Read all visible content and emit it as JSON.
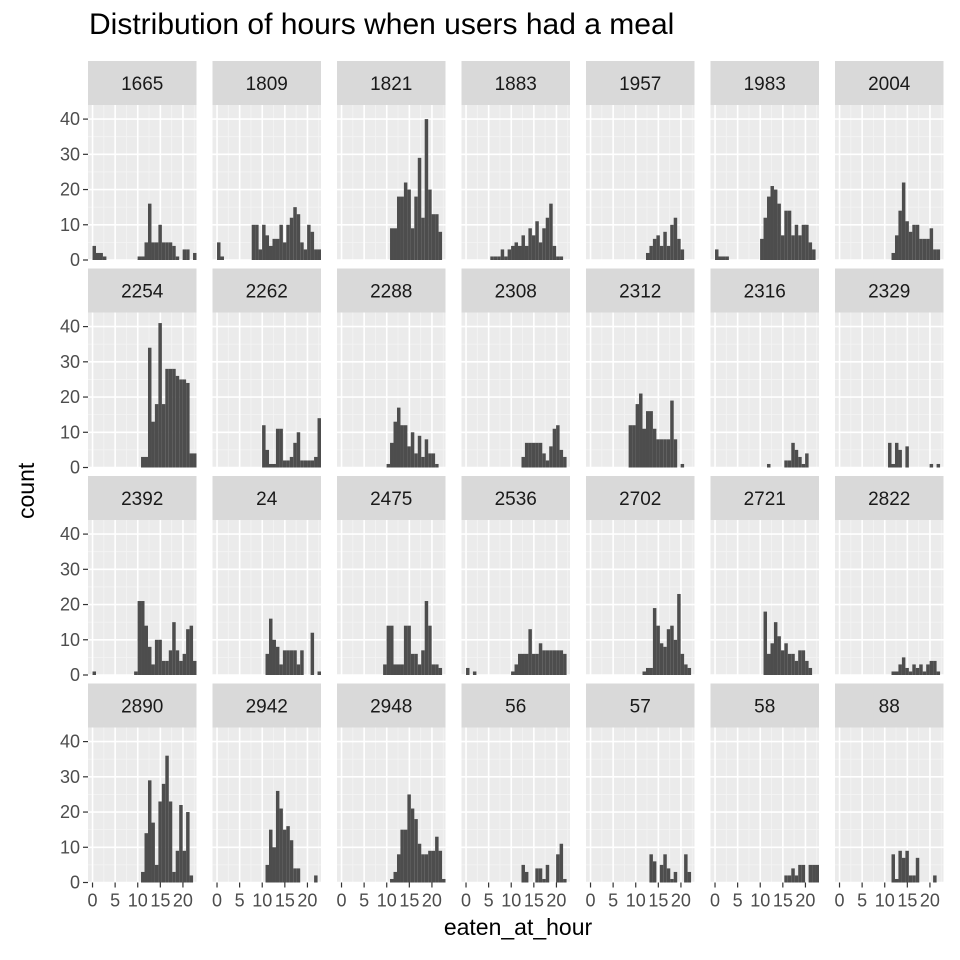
{
  "chart_data": {
    "type": "bar",
    "title": "Distribution of hours when users had a meal",
    "xlabel": "eaten_at_hour",
    "ylabel": "count",
    "xlim": [
      -1,
      23
    ],
    "ylim": [
      0,
      44
    ],
    "x_ticks": [
      0,
      5,
      10,
      15,
      20
    ],
    "x_tick_labels": [
      "0",
      "5",
      "10",
      "15",
      "20"
    ],
    "y_ticks": [
      0,
      10,
      20,
      30,
      40
    ],
    "y_tick_labels": [
      "0",
      "10",
      "20",
      "30",
      "40"
    ],
    "bar_color": "#4d4d4d",
    "strip_color": "#d9d9d9",
    "panel_color": "#ebebeb",
    "grid": true,
    "bins_x": [
      0,
      0.77,
      1.53,
      2.3,
      3.07,
      3.83,
      4.6,
      5.37,
      6.13,
      6.9,
      7.67,
      8.43,
      9.2,
      9.97,
      10.73,
      11.5,
      12.27,
      13.03,
      13.8,
      14.57,
      15.33,
      16.1,
      16.87,
      17.63,
      18.4,
      19.17,
      19.93,
      20.7,
      21.47,
      22.23
    ],
    "panels": [
      {
        "label": "1665",
        "counts": [
          4,
          2,
          2,
          1,
          0,
          0,
          0,
          0,
          0,
          0,
          0,
          0,
          0,
          1,
          1,
          5,
          16,
          5,
          5,
          10,
          5,
          5,
          5,
          4,
          1,
          0,
          3,
          3,
          0,
          2
        ]
      },
      {
        "label": "1809",
        "counts": [
          5,
          1,
          0,
          0,
          0,
          0,
          0,
          0,
          0,
          0,
          10,
          10,
          3,
          10,
          7,
          4,
          6,
          6,
          10,
          5,
          10,
          12,
          15,
          13,
          5,
          3,
          10,
          8,
          3,
          3
        ]
      },
      {
        "label": "1821",
        "counts": [
          0,
          0,
          0,
          0,
          0,
          0,
          0,
          0,
          0,
          0,
          0,
          0,
          0,
          0,
          9,
          9,
          18,
          18,
          22,
          20,
          9,
          18,
          29,
          12,
          40,
          20,
          13,
          13,
          8,
          0
        ]
      },
      {
        "label": "1883",
        "counts": [
          0,
          0,
          0,
          0,
          0,
          0,
          0,
          1,
          1,
          1,
          3,
          1,
          3,
          4,
          5,
          4,
          7,
          4,
          9,
          7,
          11,
          5,
          9,
          12,
          16,
          4,
          1,
          1,
          0,
          0
        ]
      },
      {
        "label": "1957",
        "counts": [
          0,
          0,
          0,
          0,
          0,
          0,
          0,
          0,
          0,
          0,
          0,
          0,
          0,
          0,
          0,
          0,
          2,
          4,
          6,
          7,
          4,
          8,
          4,
          10,
          12,
          6,
          3,
          0,
          0,
          0
        ]
      },
      {
        "label": "1983",
        "counts": [
          3,
          1,
          1,
          1,
          0,
          0,
          0,
          0,
          0,
          0,
          0,
          0,
          0,
          6,
          12,
          18,
          21,
          20,
          16,
          7,
          14,
          14,
          7,
          10,
          7,
          10,
          10,
          5,
          3,
          0
        ]
      },
      {
        "label": "2004",
        "counts": [
          0,
          0,
          0,
          0,
          0,
          0,
          0,
          0,
          0,
          0,
          0,
          0,
          0,
          0,
          0,
          2,
          7,
          14,
          22,
          11,
          8,
          10,
          10,
          6,
          6,
          6,
          9,
          3,
          3,
          0
        ]
      },
      {
        "label": "2254",
        "counts": [
          0,
          0,
          0,
          0,
          0,
          0,
          0,
          0,
          0,
          0,
          0,
          0,
          0,
          0,
          3,
          3,
          34,
          13,
          18,
          41,
          18,
          28,
          28,
          28,
          26,
          25,
          25,
          24,
          4,
          4
        ]
      },
      {
        "label": "2262",
        "counts": [
          0,
          0,
          0,
          0,
          0,
          0,
          0,
          0,
          0,
          0,
          0,
          0,
          0,
          12,
          5,
          1,
          1,
          11,
          11,
          2,
          2,
          3,
          7,
          10,
          2,
          2,
          2,
          2,
          3,
          14
        ]
      },
      {
        "label": "2288",
        "counts": [
          0,
          0,
          0,
          0,
          0,
          0,
          0,
          0,
          0,
          0,
          0,
          0,
          0,
          1,
          7,
          13,
          17,
          12,
          12,
          6,
          10,
          4,
          9,
          3,
          8,
          4,
          4,
          1,
          0,
          0
        ]
      },
      {
        "label": "2308",
        "counts": [
          0,
          0,
          0,
          0,
          0,
          0,
          0,
          0,
          0,
          0,
          0,
          0,
          0,
          0,
          0,
          0,
          3,
          7,
          7,
          7,
          7,
          7,
          4,
          2,
          6,
          11,
          12,
          5,
          3,
          0
        ]
      },
      {
        "label": "2312",
        "counts": [
          0,
          0,
          0,
          0,
          0,
          0,
          0,
          0,
          0,
          0,
          0,
          12,
          12,
          18,
          21,
          11,
          16,
          16,
          11,
          8,
          8,
          8,
          8,
          19,
          8,
          0,
          1,
          0,
          0,
          0
        ]
      },
      {
        "label": "2316",
        "counts": [
          0,
          0,
          0,
          0,
          0,
          0,
          0,
          0,
          0,
          0,
          0,
          0,
          0,
          0,
          0,
          1,
          0,
          0,
          0,
          0,
          2,
          2,
          7,
          5,
          3,
          1,
          4,
          0,
          0,
          0
        ]
      },
      {
        "label": "2329",
        "counts": [
          0,
          0,
          0,
          0,
          0,
          0,
          0,
          0,
          0,
          0,
          0,
          0,
          0,
          0,
          7,
          1,
          7,
          5,
          0,
          6,
          0,
          0,
          0,
          0,
          0,
          0,
          1,
          0,
          1,
          0
        ]
      },
      {
        "label": "2392",
        "counts": [
          1,
          0,
          0,
          0,
          0,
          0,
          0,
          0,
          0,
          0,
          0,
          0,
          1,
          21,
          21,
          14,
          8,
          3,
          10,
          10,
          4,
          4,
          7,
          15,
          7,
          4,
          6,
          13,
          14,
          4
        ]
      },
      {
        "label": "24",
        "counts": [
          0,
          0,
          0,
          0,
          0,
          0,
          0,
          0,
          0,
          0,
          0,
          0,
          0,
          0,
          6,
          16,
          10,
          8,
          3,
          7,
          7,
          7,
          7,
          3,
          7,
          0,
          0,
          12,
          0,
          1
        ]
      },
      {
        "label": "2475",
        "counts": [
          0,
          0,
          0,
          0,
          0,
          0,
          0,
          0,
          0,
          0,
          0,
          0,
          3,
          14,
          14,
          3,
          3,
          3,
          14,
          14,
          6,
          6,
          3,
          7,
          21,
          14,
          3,
          3,
          2,
          0
        ]
      },
      {
        "label": "2536",
        "counts": [
          2,
          0,
          1,
          0,
          0,
          0,
          0,
          0,
          0,
          0,
          0,
          0,
          0,
          1,
          3,
          6,
          6,
          6,
          13,
          6,
          6,
          9,
          7,
          7,
          7,
          7,
          7,
          7,
          6,
          0
        ]
      },
      {
        "label": "2702",
        "counts": [
          0,
          0,
          0,
          0,
          0,
          0,
          0,
          0,
          0,
          0,
          0,
          0,
          0,
          0,
          0,
          1,
          2,
          2,
          19,
          14,
          9,
          8,
          13,
          14,
          10,
          23,
          6,
          3,
          2,
          0
        ]
      },
      {
        "label": "2721",
        "counts": [
          0,
          0,
          0,
          0,
          0,
          0,
          0,
          0,
          0,
          0,
          0,
          0,
          0,
          0,
          18,
          6,
          9,
          15,
          11,
          7,
          9,
          6,
          6,
          4,
          7,
          7,
          4,
          2,
          0,
          0
        ]
      },
      {
        "label": "2822",
        "counts": [
          0,
          0,
          0,
          0,
          0,
          0,
          0,
          0,
          0,
          0,
          0,
          0,
          0,
          0,
          0,
          1,
          1,
          3,
          5,
          2,
          1,
          3,
          2,
          3,
          1,
          3,
          4,
          4,
          1,
          0
        ]
      },
      {
        "label": "2890",
        "counts": [
          0,
          0,
          0,
          0,
          0,
          0,
          0,
          0,
          0,
          0,
          0,
          0,
          0,
          0,
          3,
          14,
          29,
          17,
          5,
          23,
          28,
          36,
          23,
          3,
          9,
          22,
          9,
          20,
          2,
          0
        ]
      },
      {
        "label": "2942",
        "counts": [
          0,
          0,
          0,
          0,
          0,
          0,
          0,
          0,
          0,
          0,
          0,
          0,
          0,
          0,
          5,
          15,
          10,
          26,
          21,
          15,
          16,
          12,
          4,
          4,
          0,
          0,
          0,
          0,
          2,
          0
        ]
      },
      {
        "label": "2948",
        "counts": [
          0,
          0,
          0,
          0,
          0,
          0,
          0,
          0,
          0,
          0,
          0,
          0,
          0,
          0,
          1,
          3,
          8,
          15,
          15,
          25,
          21,
          18,
          11,
          8,
          8,
          9,
          9,
          13,
          9,
          1
        ]
      },
      {
        "label": "56",
        "counts": [
          0,
          0,
          0,
          0,
          0,
          0,
          0,
          0,
          0,
          0,
          0,
          0,
          0,
          0,
          0,
          0,
          5,
          3,
          0,
          0,
          4,
          4,
          1,
          5,
          0,
          0,
          8,
          11,
          1,
          0
        ]
      },
      {
        "label": "57",
        "counts": [
          0,
          0,
          0,
          0,
          0,
          0,
          0,
          0,
          0,
          0,
          0,
          0,
          0,
          0,
          0,
          0,
          0,
          8,
          6,
          0,
          5,
          8,
          4,
          1,
          3,
          0,
          0,
          8,
          3,
          0
        ]
      },
      {
        "label": "58",
        "counts": [
          0,
          0,
          0,
          0,
          0,
          0,
          0,
          0,
          0,
          0,
          0,
          0,
          0,
          0,
          0,
          0,
          0,
          0,
          0,
          0,
          2,
          2,
          4,
          2,
          5,
          5,
          0,
          5,
          5,
          5
        ]
      },
      {
        "label": "88",
        "counts": [
          0,
          0,
          0,
          0,
          0,
          0,
          0,
          0,
          0,
          0,
          0,
          0,
          0,
          0,
          0,
          8,
          1,
          9,
          7,
          9,
          2,
          2,
          7,
          0,
          0,
          0,
          0,
          2,
          0,
          0
        ]
      }
    ]
  }
}
